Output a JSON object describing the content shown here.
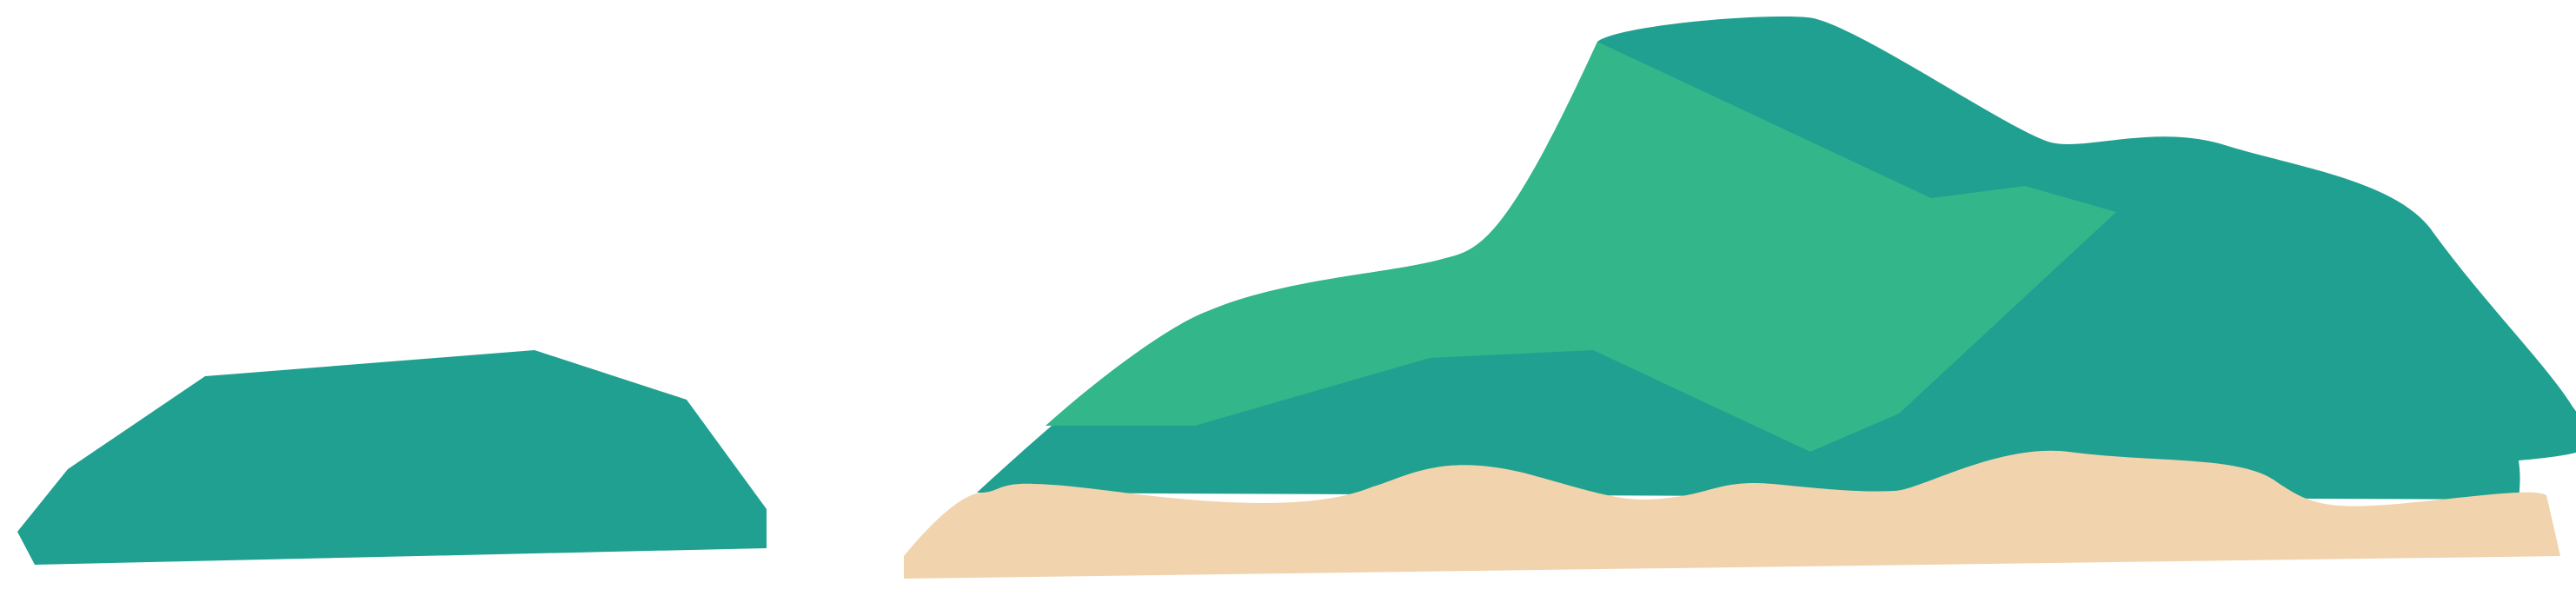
{
  "scene": {
    "colors": {
      "background": "#ffffff",
      "teal": "#20a090",
      "green": "#32b68a",
      "sand": "#f1d3ad"
    },
    "shapes": [
      {
        "name": "small-teal-rock",
        "color": "teal"
      },
      {
        "name": "large-teal-mountain",
        "color": "teal"
      },
      {
        "name": "green-highlight-facet",
        "color": "green"
      },
      {
        "name": "sand-ground-strip",
        "color": "sand"
      }
    ]
  }
}
